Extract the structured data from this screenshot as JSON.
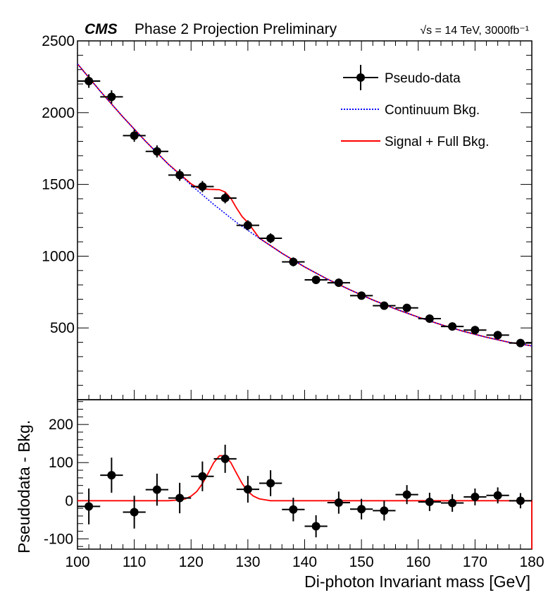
{
  "header": {
    "experiment": "CMS",
    "status": "Phase 2 Projection Preliminary",
    "energy": "√s = 14 TeV, 3000fb⁻¹"
  },
  "legend": {
    "data": "Pseudo-data",
    "continuum": "Continuum Bkg.",
    "signal": "Signal + Full Bkg."
  },
  "colors": {
    "data": "#000000",
    "continuum": "#0000ff",
    "signal": "#ff0000"
  },
  "chart_data": [
    {
      "type": "scatter",
      "panel": "main",
      "ylim": [
        0,
        2500
      ],
      "y_ticks": [
        500,
        1000,
        1500,
        2000,
        2500
      ],
      "xlim": [
        100,
        180
      ],
      "grid": false,
      "legend_position": "top-right",
      "bin_width": 4,
      "series": [
        {
          "name": "Pseudo-data",
          "x": [
            102,
            106,
            110,
            114,
            118,
            122,
            126,
            130,
            134,
            138,
            142,
            146,
            150,
            154,
            158,
            162,
            166,
            170,
            174,
            178
          ],
          "y": [
            2220,
            2110,
            1840,
            1730,
            1565,
            1485,
            1405,
            1215,
            1125,
            960,
            835,
            815,
            725,
            655,
            640,
            565,
            510,
            485,
            450,
            395
          ],
          "yerr": [
            47,
            46,
            43,
            42,
            40,
            39,
            37,
            35,
            34,
            31,
            29,
            29,
            27,
            26,
            25,
            24,
            23,
            22,
            21,
            20
          ]
        },
        {
          "name": "Continuum Bkg.",
          "style": "dotted",
          "x": [
            100,
            104,
            108,
            112,
            116,
            120,
            124,
            128,
            132,
            136,
            140,
            144,
            148,
            152,
            156,
            160,
            164,
            168,
            172,
            176,
            180
          ],
          "y": [
            2340,
            2150,
            1970,
            1800,
            1640,
            1495,
            1360,
            1235,
            1125,
            1020,
            925,
            840,
            765,
            695,
            632,
            575,
            523,
            476,
            435,
            400,
            375
          ]
        },
        {
          "name": "Signal + Full Bkg.",
          "x": [
            100,
            104,
            108,
            112,
            116,
            120,
            121,
            122,
            123,
            124,
            125,
            126,
            127,
            128,
            129,
            130,
            132,
            136,
            140,
            144,
            148,
            152,
            156,
            160,
            164,
            168,
            172,
            176,
            180
          ],
          "y": [
            2340,
            2150,
            1970,
            1800,
            1641,
            1504,
            1480,
            1470,
            1466,
            1465,
            1463,
            1447,
            1403,
            1335,
            1275,
            1235,
            1126,
            1020,
            925,
            840,
            765,
            695,
            632,
            575,
            523,
            476,
            435,
            400,
            375
          ]
        }
      ]
    },
    {
      "type": "scatter",
      "panel": "ratio",
      "ylabel": "Pseudodata - Bkg.",
      "xlabel": "Di-photon Invariant mass [GeV]",
      "xlim": [
        100,
        180
      ],
      "ylim": [
        -127,
        265
      ],
      "y_ticks": [
        -100,
        0,
        100,
        200
      ],
      "x_ticks": [
        100,
        110,
        120,
        130,
        140,
        150,
        160,
        170,
        180
      ],
      "bin_width": 4,
      "series": [
        {
          "name": "Pseudo-data",
          "x": [
            102,
            106,
            110,
            114,
            118,
            122,
            126,
            130,
            134,
            138,
            142,
            146,
            150,
            154,
            158,
            162,
            166,
            170,
            174,
            178
          ],
          "y": [
            -15,
            67,
            -30,
            29,
            7,
            64,
            110,
            30,
            46,
            -23,
            -67,
            -5,
            -22,
            -26,
            16,
            -3,
            -6,
            10,
            14,
            0
          ],
          "yerr": [
            47,
            46,
            43,
            42,
            40,
            39,
            37,
            35,
            34,
            31,
            29,
            29,
            27,
            26,
            25,
            24,
            23,
            22,
            21,
            20
          ]
        },
        {
          "name": "Signal + Full Bkg.",
          "x": [
            100,
            116,
            118,
            119,
            120,
            121,
            122,
            123,
            124,
            125,
            126,
            127,
            128,
            129,
            130,
            131,
            132,
            134,
            180
          ],
          "y": [
            0,
            0,
            2,
            5,
            12,
            24,
            45,
            72,
            100,
            118,
            118,
            100,
            72,
            45,
            24,
            12,
            5,
            0,
            0
          ]
        }
      ]
    }
  ]
}
